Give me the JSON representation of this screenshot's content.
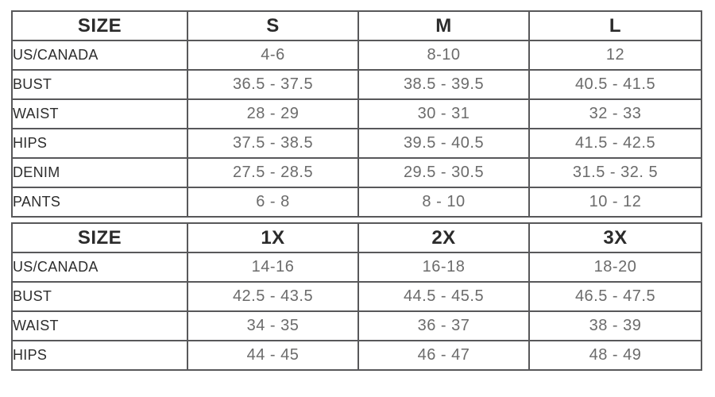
{
  "colors": {
    "border": "#58585a",
    "header_text": "#2b2b2b",
    "label_text": "#2d2d2d",
    "value_text": "#6b6b6b",
    "background": "#ffffff"
  },
  "tables": [
    {
      "name": "regular-sizes",
      "header": [
        "SIZE",
        "S",
        "M",
        "L"
      ],
      "rows": [
        {
          "label": "US/CANADA",
          "values": [
            "4-6",
            "8-10",
            "12"
          ]
        },
        {
          "label": "BUST",
          "values": [
            "36.5 - 37.5",
            "38.5 - 39.5",
            "40.5 - 41.5"
          ]
        },
        {
          "label": "WAIST",
          "values": [
            "28 - 29",
            "30 - 31",
            "32 - 33"
          ]
        },
        {
          "label": "HIPS",
          "values": [
            "37.5 - 38.5",
            "39.5 - 40.5",
            "41.5 - 42.5"
          ]
        },
        {
          "label": "DENIM",
          "values": [
            "27.5 - 28.5",
            "29.5 - 30.5",
            "31.5 - 32. 5"
          ]
        },
        {
          "label": "PANTS",
          "values": [
            "6 - 8",
            "8 - 10",
            "10 - 12"
          ]
        }
      ]
    },
    {
      "name": "plus-sizes",
      "header": [
        "SIZE",
        "1X",
        "2X",
        "3X"
      ],
      "rows": [
        {
          "label": "US/CANADA",
          "values": [
            "14-16",
            "16-18",
            "18-20"
          ]
        },
        {
          "label": "BUST",
          "values": [
            "42.5 - 43.5",
            "44.5 - 45.5",
            "46.5 - 47.5"
          ]
        },
        {
          "label": "WAIST",
          "values": [
            "34 - 35",
            "36 - 37",
            "38 - 39"
          ]
        },
        {
          "label": "HIPS",
          "values": [
            "44 - 45",
            "46 - 47",
            "48 - 49"
          ]
        }
      ]
    }
  ]
}
